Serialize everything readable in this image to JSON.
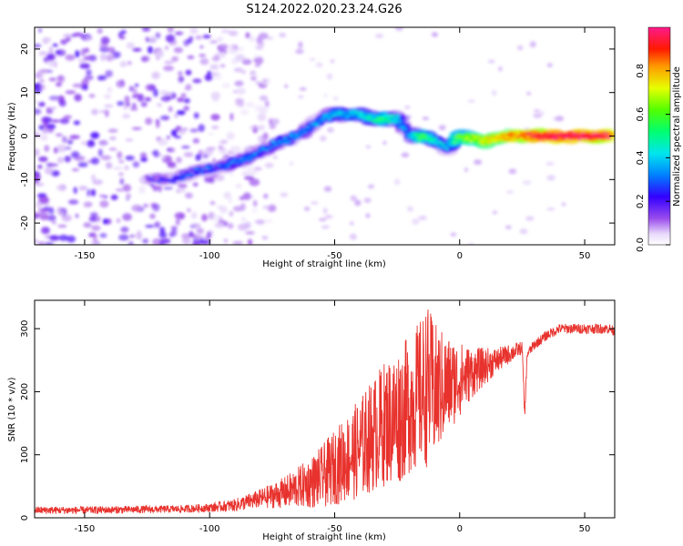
{
  "figure": {
    "title": "S124.2022.020.23.24.G26"
  },
  "colors": {
    "snr_line": "#e8322d",
    "axes": "#000000",
    "background": "#ffffff"
  },
  "chart_data": [
    {
      "type": "heatmap",
      "name": "spectrogram",
      "xlabel": "Height of straight line (km)",
      "ylabel": "Frequency (Hz)",
      "xlim": [
        -170,
        62
      ],
      "ylim": [
        -25,
        25
      ],
      "xticks": [
        -150,
        -100,
        -50,
        0,
        50
      ],
      "yticks": [
        -20,
        -10,
        0,
        10,
        20
      ],
      "colorbar": {
        "label": "Normalized spectral amplitude",
        "range": [
          0,
          1
        ],
        "ticks": [
          0.0,
          0.2,
          0.4,
          0.6,
          0.8
        ],
        "tick_labels": [
          "0.0",
          "0.2",
          "0.4",
          "0.6",
          "0.8"
        ],
        "colormap": "rainbow (white-violet-blue-cyan-green-yellow-red-pink)"
      },
      "ridge": {
        "description": "frequency of peak spectral amplitude vs height",
        "x": [
          -125,
          -115,
          -105,
          -95,
          -85,
          -75,
          -65,
          -55,
          -50,
          -45,
          -40,
          -35,
          -30,
          -25,
          -20,
          -15,
          -10,
          -5,
          0,
          10,
          20,
          30,
          40,
          50,
          60
        ],
        "y": [
          -10,
          -10,
          -8,
          -7,
          -5,
          -2,
          0,
          4,
          5,
          5,
          5,
          4,
          4,
          4,
          0,
          0,
          -1,
          -3,
          0,
          -1,
          0,
          0,
          0,
          0,
          0
        ],
        "amplitude": [
          0.15,
          0.2,
          0.25,
          0.25,
          0.3,
          0.3,
          0.3,
          0.3,
          0.35,
          0.35,
          0.4,
          0.45,
          0.5,
          0.4,
          0.3,
          0.6,
          0.4,
          0.35,
          0.6,
          0.7,
          0.8,
          0.9,
          0.95,
          0.95,
          0.9
        ]
      },
      "noise_region": {
        "description": "scattered low amplitude noise for heights below about -100 km",
        "x_range": [
          -170,
          -100
        ],
        "y_range": [
          -25,
          25
        ],
        "amplitude_range": [
          0.05,
          0.2
        ]
      }
    },
    {
      "type": "line",
      "name": "snr",
      "xlabel": "Height of straight line (km)",
      "ylabel": "SNR (10 * v/v)",
      "xlim": [
        -170,
        62
      ],
      "ylim": [
        0,
        345
      ],
      "xticks": [
        -150,
        -100,
        -50,
        0,
        50
      ],
      "yticks": [
        0,
        100,
        200,
        300
      ],
      "series": [
        {
          "x": [
            -170,
            -150,
            -130,
            -110,
            -100,
            -90,
            -80,
            -70,
            -60,
            -55,
            -50,
            -45,
            -40,
            -35,
            -30,
            -25,
            -20,
            -15,
            -13,
            -10,
            -5,
            0,
            5,
            10,
            15,
            20,
            25,
            26,
            27,
            30,
            35,
            40,
            50,
            60,
            62
          ],
          "y": [
            12,
            12,
            13,
            14,
            16,
            20,
            30,
            40,
            55,
            65,
            80,
            95,
            110,
            130,
            150,
            160,
            180,
            200,
            210,
            200,
            210,
            220,
            230,
            240,
            250,
            260,
            270,
            160,
            260,
            275,
            290,
            300,
            300,
            300,
            295
          ],
          "noise_amplitude": [
            6,
            6,
            6,
            6,
            7,
            10,
            15,
            25,
            40,
            50,
            60,
            70,
            80,
            90,
            100,
            110,
            110,
            120,
            130,
            110,
            80,
            60,
            40,
            30,
            20,
            15,
            10,
            10,
            8,
            8,
            8,
            8,
            8,
            8,
            8
          ]
        }
      ]
    }
  ]
}
